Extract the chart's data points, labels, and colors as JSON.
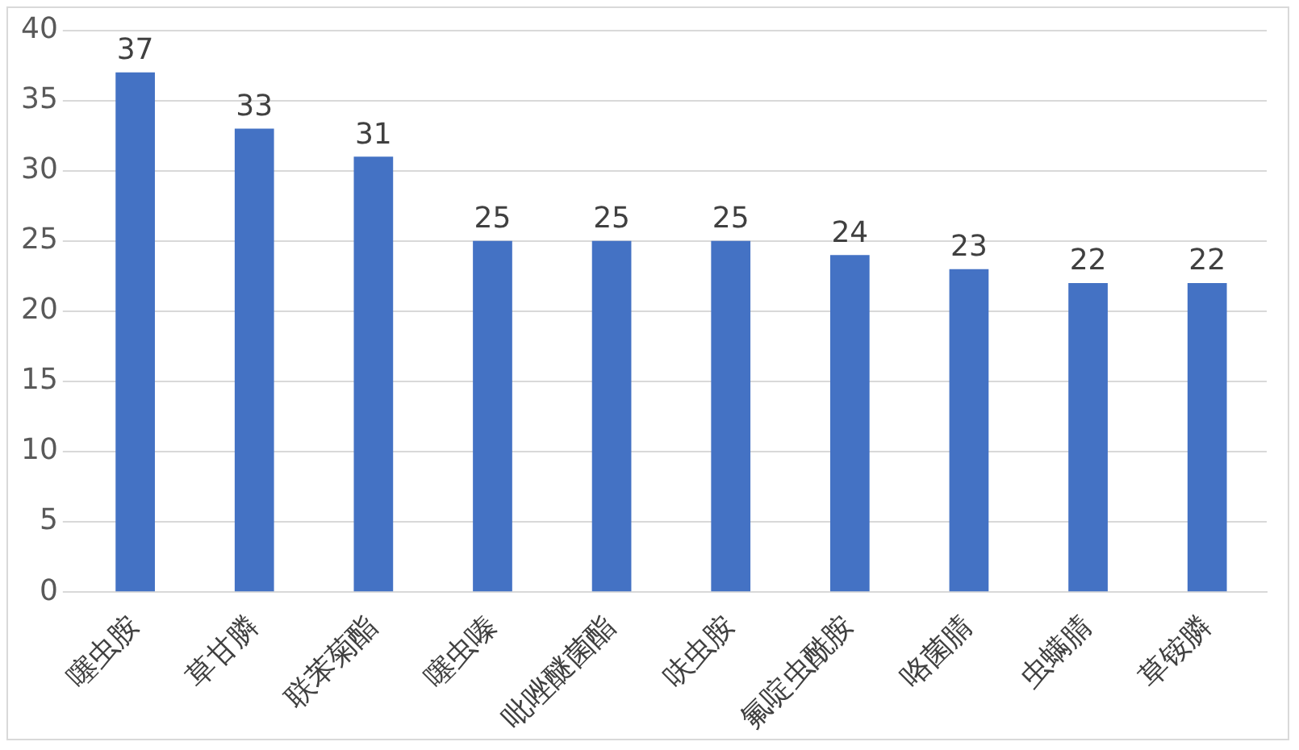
{
  "chart_data": {
    "type": "bar",
    "categories": [
      "噻虫胺",
      "草甘膦",
      "联苯菊酯",
      "噻虫嗪",
      "吡唑醚菌酯",
      "呋虫胺",
      "氟啶虫酰胺",
      "咯菌腈",
      "虫螨腈",
      "草铵膦"
    ],
    "values": [
      37,
      33,
      31,
      25,
      25,
      25,
      24,
      23,
      22,
      22
    ],
    "color": "#4472c4",
    "ylim": [
      0,
      40
    ],
    "yticks": [
      0,
      5,
      10,
      15,
      20,
      25,
      30,
      35,
      40
    ],
    "grid": "y",
    "data_labels": true,
    "legend": false
  }
}
